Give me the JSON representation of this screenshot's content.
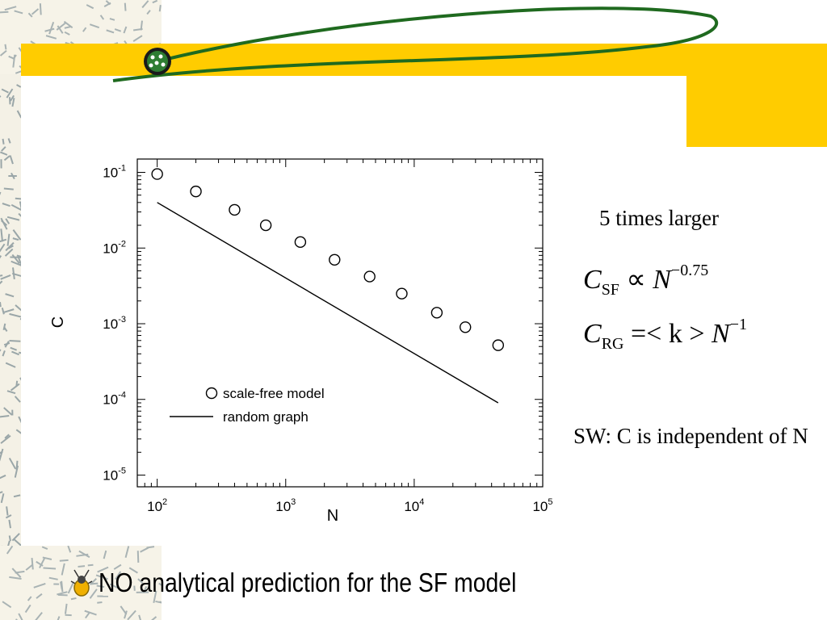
{
  "slide": {
    "title": "",
    "bullet": "NO analytical prediction for the SF model"
  },
  "colors": {
    "band": "#ffcc00",
    "orbit": "#1f6a1f"
  },
  "annotations": {
    "larger": "5 times larger",
    "sw_note": "SW: C is independent of N"
  },
  "formulas": {
    "sf": {
      "var": "C",
      "sub": "SF",
      "rel": "∝",
      "rhs": "N",
      "exp": "−0.75"
    },
    "rg": {
      "var": "C",
      "sub": "RG",
      "rel": "=< k > ",
      "rhs": "N",
      "exp": "−1"
    }
  },
  "chart_data": {
    "type": "scatter",
    "xlabel": "N",
    "ylabel": "C",
    "x_scale": "log",
    "y_scale": "log",
    "xlim": [
      70,
      100000
    ],
    "ylim": [
      7e-06,
      0.15
    ],
    "x_ticks": [
      "10^2",
      "10^3",
      "10^4",
      "10^5"
    ],
    "y_ticks": [
      "10^-1",
      "10^-2",
      "10^-3",
      "10^-4",
      "10^-5"
    ],
    "legend_position": "bottom-left",
    "grid": false,
    "series": [
      {
        "name": "scale-free model",
        "marker": "open-circle",
        "points": [
          [
            100,
            0.095
          ],
          [
            200,
            0.056
          ],
          [
            400,
            0.032
          ],
          [
            700,
            0.02
          ],
          [
            1300,
            0.012
          ],
          [
            2400,
            0.007
          ],
          [
            4500,
            0.0042
          ],
          [
            8000,
            0.0025
          ],
          [
            15000,
            0.0014
          ],
          [
            25000,
            0.0009
          ],
          [
            45000,
            0.00052
          ]
        ]
      },
      {
        "name": "random graph",
        "marker": "line",
        "points": [
          [
            100,
            0.04
          ],
          [
            45000,
            9e-05
          ]
        ]
      }
    ]
  }
}
